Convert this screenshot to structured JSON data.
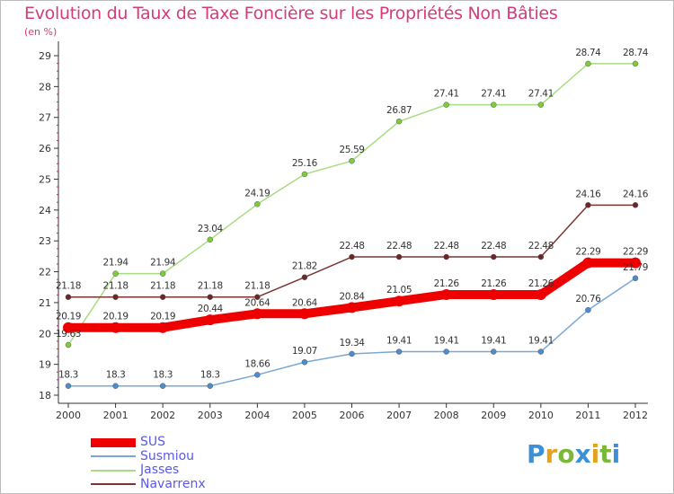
{
  "title": "Evolution du Taux de Taxe Foncière sur les Propriétés Non Bâties",
  "unit_label": "(en %)",
  "colors": {
    "title": "#d63b79",
    "axis": "#333333",
    "tick_marks": "#c52a5a",
    "label_text": "#333333",
    "legend_text": "#5a5ae6"
  },
  "logo": {
    "letters": [
      "P",
      "r",
      "o",
      "x",
      "i",
      "t",
      "i"
    ],
    "colors": [
      "#3d8fd6",
      "#e8a020",
      "#7ab83a",
      "#3d8fd6",
      "#e8a020",
      "#7ab83a",
      "#3d8fd6"
    ]
  },
  "chart_data": {
    "type": "line",
    "title": "Evolution du Taux de Taxe Foncière sur les Propriétés Non Bâties",
    "ylabel": "(en %)",
    "xlabel": "",
    "x": [
      "2000",
      "2001",
      "2002",
      "2003",
      "2004",
      "2005",
      "2006",
      "2007",
      "2008",
      "2009",
      "2010",
      "2011",
      "2012"
    ],
    "ylim": [
      18,
      29
    ],
    "yticks": [
      "18",
      "19",
      "20",
      "21",
      "22",
      "23",
      "24",
      "25",
      "26",
      "27",
      "28",
      "29"
    ],
    "grid": false,
    "legend_position": "bottom-left",
    "series": [
      {
        "name": "SUS",
        "color": "#ee0000",
        "marker_fill": "#ee0000",
        "emphasis": true,
        "values": [
          20.19,
          20.19,
          20.19,
          20.44,
          20.64,
          20.64,
          20.84,
          21.05,
          21.26,
          21.26,
          21.26,
          22.29,
          22.29
        ],
        "labels": [
          "20.19",
          "20.19",
          "20.19",
          "20.44",
          "20.64",
          "20.64",
          "20.84",
          "21.05",
          "21.26",
          "21.26",
          "21.26",
          "22.29",
          "22.29"
        ]
      },
      {
        "name": "Susmiou",
        "color": "#7aa8d4",
        "marker_fill": "#4a8ed0",
        "emphasis": false,
        "values": [
          18.3,
          18.3,
          18.3,
          18.3,
          18.66,
          19.07,
          19.34,
          19.41,
          19.41,
          19.41,
          19.41,
          20.76,
          21.79
        ],
        "labels": [
          "18.3",
          "18.3",
          "18.3",
          "18.3",
          "18.66",
          "19.07",
          "19.34",
          "19.41",
          "19.41",
          "19.41",
          "19.41",
          "20.76",
          "21.79"
        ]
      },
      {
        "name": "Jasses",
        "color": "#a6dc82",
        "marker_fill": "#7ccc3c",
        "emphasis": false,
        "values": [
          19.63,
          21.94,
          21.94,
          23.04,
          24.19,
          25.16,
          25.59,
          26.87,
          27.41,
          27.41,
          27.41,
          28.74,
          28.74
        ],
        "labels": [
          "19.63",
          "21.94",
          "21.94",
          "23.04",
          "24.19",
          "25.16",
          "25.59",
          "26.87",
          "27.41",
          "27.41",
          "27.41",
          "28.74",
          "28.74"
        ]
      },
      {
        "name": "Navarrenx",
        "color": "#7a3535",
        "marker_fill": "#6b2626",
        "emphasis": false,
        "values": [
          21.18,
          21.18,
          21.18,
          21.18,
          21.18,
          21.82,
          22.48,
          22.48,
          22.48,
          22.48,
          22.48,
          24.16,
          24.16
        ],
        "labels": [
          "21.18",
          "21.18",
          "21.18",
          "21.18",
          "21.18",
          "21.82",
          "22.48",
          "22.48",
          "22.48",
          "22.48",
          "22.48",
          "24.16",
          "24.16"
        ]
      }
    ]
  }
}
